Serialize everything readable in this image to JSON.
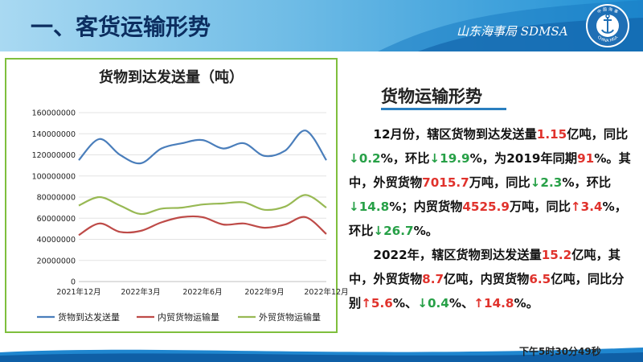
{
  "header": {
    "title": "一、客货运输形势",
    "logo_text": "山东海事局 SDMSA",
    "emblem_top_text": "中 国 海 事",
    "emblem_bottom_text": "CHINA MSA"
  },
  "chart_data": {
    "type": "line",
    "title": "货物到达发送量（吨）",
    "x": [
      "2021年12月",
      "2022年1月",
      "2022年2月",
      "2022年3月",
      "2022年4月",
      "2022年5月",
      "2022年6月",
      "2022年7月",
      "2022年8月",
      "2022年9月",
      "2022年10月",
      "2022年11月",
      "2022年12月"
    ],
    "x_tick_labels": [
      "2021年12月",
      "2022年3月",
      "2022年6月",
      "2022年9月",
      "2022年12月"
    ],
    "x_tick_indices": [
      0,
      3,
      6,
      9,
      12
    ],
    "series": [
      {
        "name": "货物到达发送量",
        "color": "#4a7ebb",
        "values": [
          115000000,
          135000000,
          120000000,
          112000000,
          126000000,
          131000000,
          134000000,
          126000000,
          131000000,
          119000000,
          124000000,
          143000000,
          115000000
        ]
      },
      {
        "name": "内贸货物运输量",
        "color": "#be4b48",
        "values": [
          44000000,
          55000000,
          47000000,
          48000000,
          56000000,
          61000000,
          61000000,
          54000000,
          55000000,
          51000000,
          54000000,
          61000000,
          45000000
        ]
      },
      {
        "name": "外贸货物运输量",
        "color": "#98b954",
        "values": [
          72000000,
          80000000,
          72000000,
          64000000,
          69000000,
          70000000,
          73000000,
          74000000,
          75000000,
          68000000,
          71000000,
          82000000,
          70000000
        ]
      }
    ],
    "ylim": [
      0,
      160000000
    ],
    "y_ticks": [
      0,
      20000000,
      40000000,
      60000000,
      80000000,
      100000000,
      120000000,
      140000000,
      160000000
    ],
    "grid": true,
    "legend_position": "bottom"
  },
  "summary": {
    "title": "货物运输形势",
    "p1": [
      {
        "t": "12月份，辖区货物到达发送量",
        "c": ""
      },
      {
        "t": "1.15",
        "c": "red"
      },
      {
        "t": "亿吨，同比",
        "c": ""
      },
      {
        "t": "↓0.2",
        "c": "green"
      },
      {
        "t": "%，环比",
        "c": ""
      },
      {
        "t": "↓19.9",
        "c": "green"
      },
      {
        "t": "%，为2019年同期",
        "c": ""
      },
      {
        "t": "91",
        "c": "red"
      },
      {
        "t": "%。其中，外贸货物",
        "c": ""
      },
      {
        "t": "7015.7",
        "c": "red"
      },
      {
        "t": "万吨，同比",
        "c": ""
      },
      {
        "t": "↓2.3",
        "c": "green"
      },
      {
        "t": "%，环比",
        "c": ""
      },
      {
        "t": "↓14.8",
        "c": "green"
      },
      {
        "t": "%；内贸货物",
        "c": ""
      },
      {
        "t": "4525.9",
        "c": "red"
      },
      {
        "t": "万吨，同比",
        "c": ""
      },
      {
        "t": "↑3.4",
        "c": "red"
      },
      {
        "t": "%，环比",
        "c": ""
      },
      {
        "t": "↓26.7",
        "c": "green"
      },
      {
        "t": "%。",
        "c": ""
      }
    ],
    "p2": [
      {
        "t": "2022年，辖区货物到达发送量",
        "c": ""
      },
      {
        "t": "15.2",
        "c": "red"
      },
      {
        "t": "亿吨，其中，外贸货物",
        "c": ""
      },
      {
        "t": "8.7",
        "c": "red"
      },
      {
        "t": "亿吨，内贸货物",
        "c": ""
      },
      {
        "t": "6.5",
        "c": "red"
      },
      {
        "t": "亿吨，同比分别",
        "c": ""
      },
      {
        "t": "↑5.6",
        "c": "red"
      },
      {
        "t": "%、",
        "c": ""
      },
      {
        "t": "↓0.4",
        "c": "green"
      },
      {
        "t": "%、",
        "c": ""
      },
      {
        "t": "↑14.8",
        "c": "red"
      },
      {
        "t": "%。",
        "c": ""
      }
    ]
  },
  "footer": {
    "clock": "下午5时30分49秒"
  }
}
